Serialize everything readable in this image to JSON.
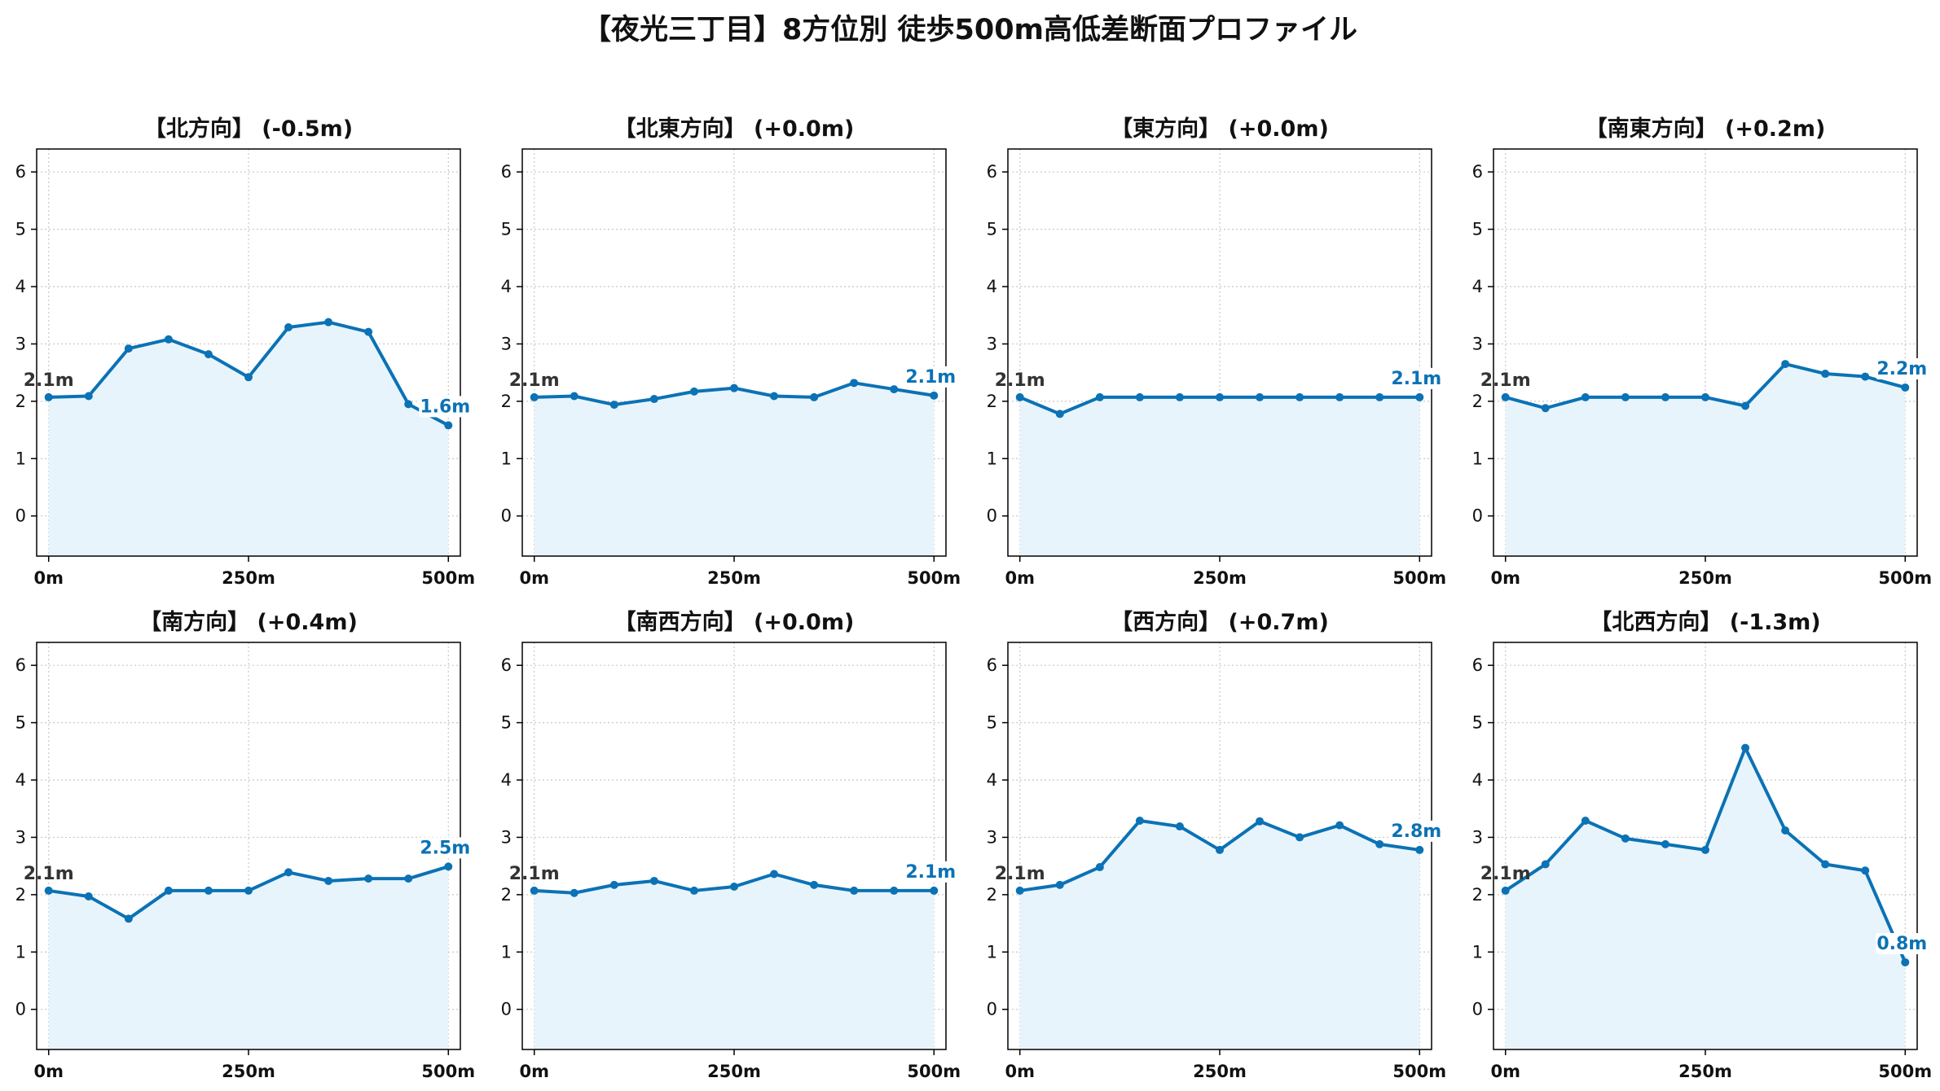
{
  "figure": {
    "title": "【夜光三丁目】8方位別 徒歩500m高低差断面プロファイル",
    "colors": {
      "line": "#0b72b5",
      "fill": "#e8f4fb",
      "grid": "#c8c8c8",
      "axis": "#000000"
    }
  },
  "chart_data": [
    {
      "type": "line",
      "title": "【北方向】 (-0.5m)",
      "x": [
        0,
        50,
        100,
        150,
        200,
        250,
        300,
        350,
        400,
        450,
        500
      ],
      "y": [
        2.07,
        2.09,
        2.92,
        3.08,
        2.82,
        2.42,
        3.29,
        3.38,
        3.21,
        1.95,
        1.58
      ],
      "xticks": [
        0,
        250,
        500
      ],
      "xtick_labels": [
        "0m",
        "250m",
        "500m"
      ],
      "yticks": [
        0,
        1,
        2,
        3,
        4,
        5,
        6
      ],
      "xlim": [
        -15,
        515
      ],
      "ylim": [
        -0.7,
        6.4
      ],
      "grid": true,
      "start_label": "2.1m",
      "end_label": "1.6m"
    },
    {
      "type": "line",
      "title": "【北東方向】 (+0.0m)",
      "x": [
        0,
        50,
        100,
        150,
        200,
        250,
        300,
        350,
        400,
        450,
        500
      ],
      "y": [
        2.07,
        2.09,
        1.94,
        2.04,
        2.17,
        2.23,
        2.09,
        2.07,
        2.32,
        2.21,
        2.1
      ],
      "xticks": [
        0,
        250,
        500
      ],
      "xtick_labels": [
        "0m",
        "250m",
        "500m"
      ],
      "yticks": [
        0,
        1,
        2,
        3,
        4,
        5,
        6
      ],
      "xlim": [
        -15,
        515
      ],
      "ylim": [
        -0.7,
        6.4
      ],
      "grid": true,
      "start_label": "2.1m",
      "end_label": "2.1m"
    },
    {
      "type": "line",
      "title": "【東方向】 (+0.0m)",
      "x": [
        0,
        50,
        100,
        150,
        200,
        250,
        300,
        350,
        400,
        450,
        500
      ],
      "y": [
        2.07,
        1.78,
        2.07,
        2.07,
        2.07,
        2.07,
        2.07,
        2.07,
        2.07,
        2.07,
        2.07
      ],
      "xticks": [
        0,
        250,
        500
      ],
      "xtick_labels": [
        "0m",
        "250m",
        "500m"
      ],
      "yticks": [
        0,
        1,
        2,
        3,
        4,
        5,
        6
      ],
      "xlim": [
        -15,
        515
      ],
      "ylim": [
        -0.7,
        6.4
      ],
      "grid": true,
      "start_label": "2.1m",
      "end_label": "2.1m"
    },
    {
      "type": "line",
      "title": "【南東方向】 (+0.2m)",
      "x": [
        0,
        50,
        100,
        150,
        200,
        250,
        300,
        350,
        400,
        450,
        500
      ],
      "y": [
        2.07,
        1.88,
        2.07,
        2.07,
        2.07,
        2.07,
        1.92,
        2.65,
        2.48,
        2.43,
        2.24
      ],
      "xticks": [
        0,
        250,
        500
      ],
      "xtick_labels": [
        "0m",
        "250m",
        "500m"
      ],
      "yticks": [
        0,
        1,
        2,
        3,
        4,
        5,
        6
      ],
      "xlim": [
        -15,
        515
      ],
      "ylim": [
        -0.7,
        6.4
      ],
      "grid": true,
      "start_label": "2.1m",
      "end_label": "2.2m"
    },
    {
      "type": "line",
      "title": "【南方向】 (+0.4m)",
      "x": [
        0,
        50,
        100,
        150,
        200,
        250,
        300,
        350,
        400,
        450,
        500
      ],
      "y": [
        2.07,
        1.97,
        1.58,
        2.07,
        2.07,
        2.07,
        2.39,
        2.24,
        2.28,
        2.28,
        2.49
      ],
      "xticks": [
        0,
        250,
        500
      ],
      "xtick_labels": [
        "0m",
        "250m",
        "500m"
      ],
      "yticks": [
        0,
        1,
        2,
        3,
        4,
        5,
        6
      ],
      "xlim": [
        -15,
        515
      ],
      "ylim": [
        -0.7,
        6.4
      ],
      "grid": true,
      "start_label": "2.1m",
      "end_label": "2.5m"
    },
    {
      "type": "line",
      "title": "【南西方向】 (+0.0m)",
      "x": [
        0,
        50,
        100,
        150,
        200,
        250,
        300,
        350,
        400,
        450,
        500
      ],
      "y": [
        2.07,
        2.03,
        2.17,
        2.24,
        2.07,
        2.14,
        2.36,
        2.17,
        2.07,
        2.07,
        2.07
      ],
      "xticks": [
        0,
        250,
        500
      ],
      "xtick_labels": [
        "0m",
        "250m",
        "500m"
      ],
      "yticks": [
        0,
        1,
        2,
        3,
        4,
        5,
        6
      ],
      "xlim": [
        -15,
        515
      ],
      "ylim": [
        -0.7,
        6.4
      ],
      "grid": true,
      "start_label": "2.1m",
      "end_label": "2.1m"
    },
    {
      "type": "line",
      "title": "【西方向】 (+0.7m)",
      "x": [
        0,
        50,
        100,
        150,
        200,
        250,
        300,
        350,
        400,
        450,
        500
      ],
      "y": [
        2.07,
        2.17,
        2.48,
        3.29,
        3.19,
        2.78,
        3.28,
        3.0,
        3.21,
        2.88,
        2.78
      ],
      "xticks": [
        0,
        250,
        500
      ],
      "xtick_labels": [
        "0m",
        "250m",
        "500m"
      ],
      "yticks": [
        0,
        1,
        2,
        3,
        4,
        5,
        6
      ],
      "xlim": [
        -15,
        515
      ],
      "ylim": [
        -0.7,
        6.4
      ],
      "grid": true,
      "start_label": "2.1m",
      "end_label": "2.8m"
    },
    {
      "type": "line",
      "title": "【北西方向】 (-1.3m)",
      "x": [
        0,
        50,
        100,
        150,
        200,
        250,
        300,
        350,
        400,
        450,
        500
      ],
      "y": [
        2.07,
        2.53,
        3.29,
        2.98,
        2.88,
        2.78,
        4.56,
        3.12,
        2.53,
        2.42,
        0.82
      ],
      "xticks": [
        0,
        250,
        500
      ],
      "xtick_labels": [
        "0m",
        "250m",
        "500m"
      ],
      "yticks": [
        0,
        1,
        2,
        3,
        4,
        5,
        6
      ],
      "xlim": [
        -15,
        515
      ],
      "ylim": [
        -0.7,
        6.4
      ],
      "grid": true,
      "start_label": "2.1m",
      "end_label": "0.8m"
    }
  ]
}
